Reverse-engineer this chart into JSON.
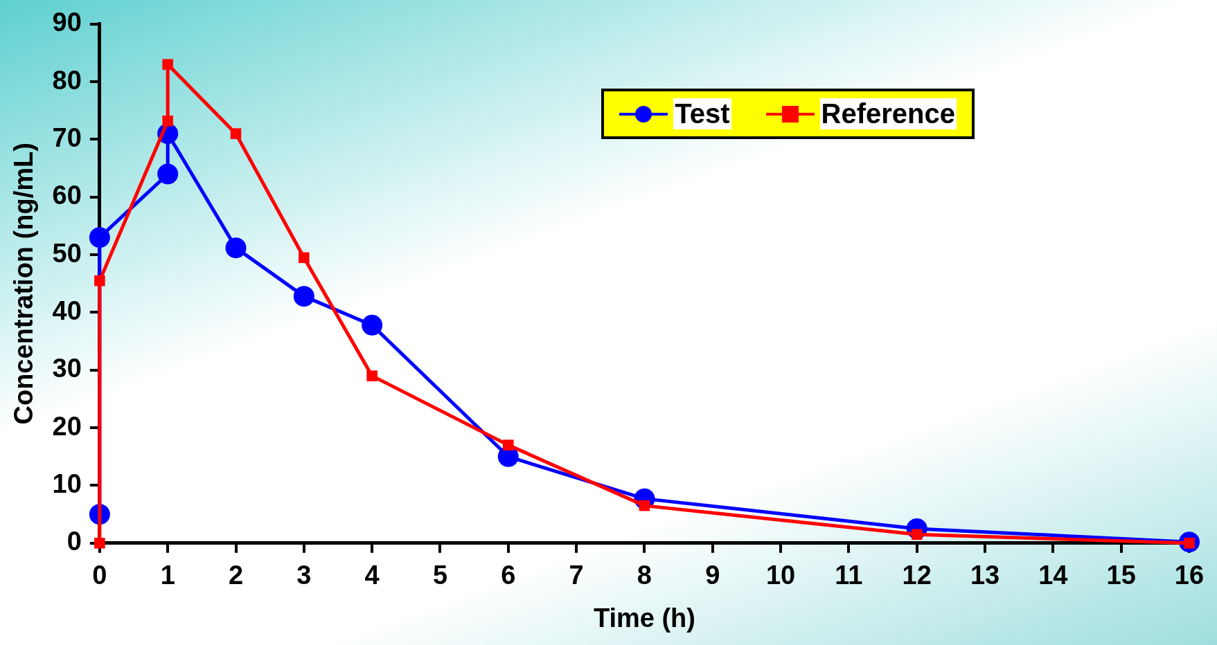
{
  "chart_data": {
    "type": "line",
    "xlabel": "Time (h)",
    "ylabel": "Concentration (ng/mL)",
    "xlim": [
      0,
      16
    ],
    "xticks": [
      0,
      1,
      2,
      3,
      4,
      5,
      6,
      7,
      8,
      9,
      10,
      11,
      12,
      13,
      14,
      15,
      16
    ],
    "ylim": [
      0,
      90
    ],
    "yticks": [
      0,
      10,
      20,
      30,
      40,
      50,
      60,
      70,
      80,
      90
    ],
    "grid": false,
    "legend": "top right",
    "line_style": "solid",
    "series": [
      {
        "name": "Test",
        "color": "#0000ff",
        "marker": "circle",
        "x": [
          0,
          0,
          1,
          1,
          2,
          3,
          4,
          6,
          8,
          12,
          16
        ],
        "values": [
          5,
          53,
          64,
          71,
          51.2,
          42.8,
          37.8,
          15,
          7.7,
          2.5,
          0.2
        ]
      },
      {
        "name": "Reference",
        "color": "#ff0000",
        "marker": "square",
        "x": [
          0,
          0,
          1,
          1,
          2,
          3,
          4,
          6,
          8,
          12,
          16
        ],
        "values": [
          0,
          45.5,
          73.2,
          83,
          71,
          49.5,
          29,
          17,
          6.5,
          1.5,
          0
        ]
      }
    ]
  }
}
